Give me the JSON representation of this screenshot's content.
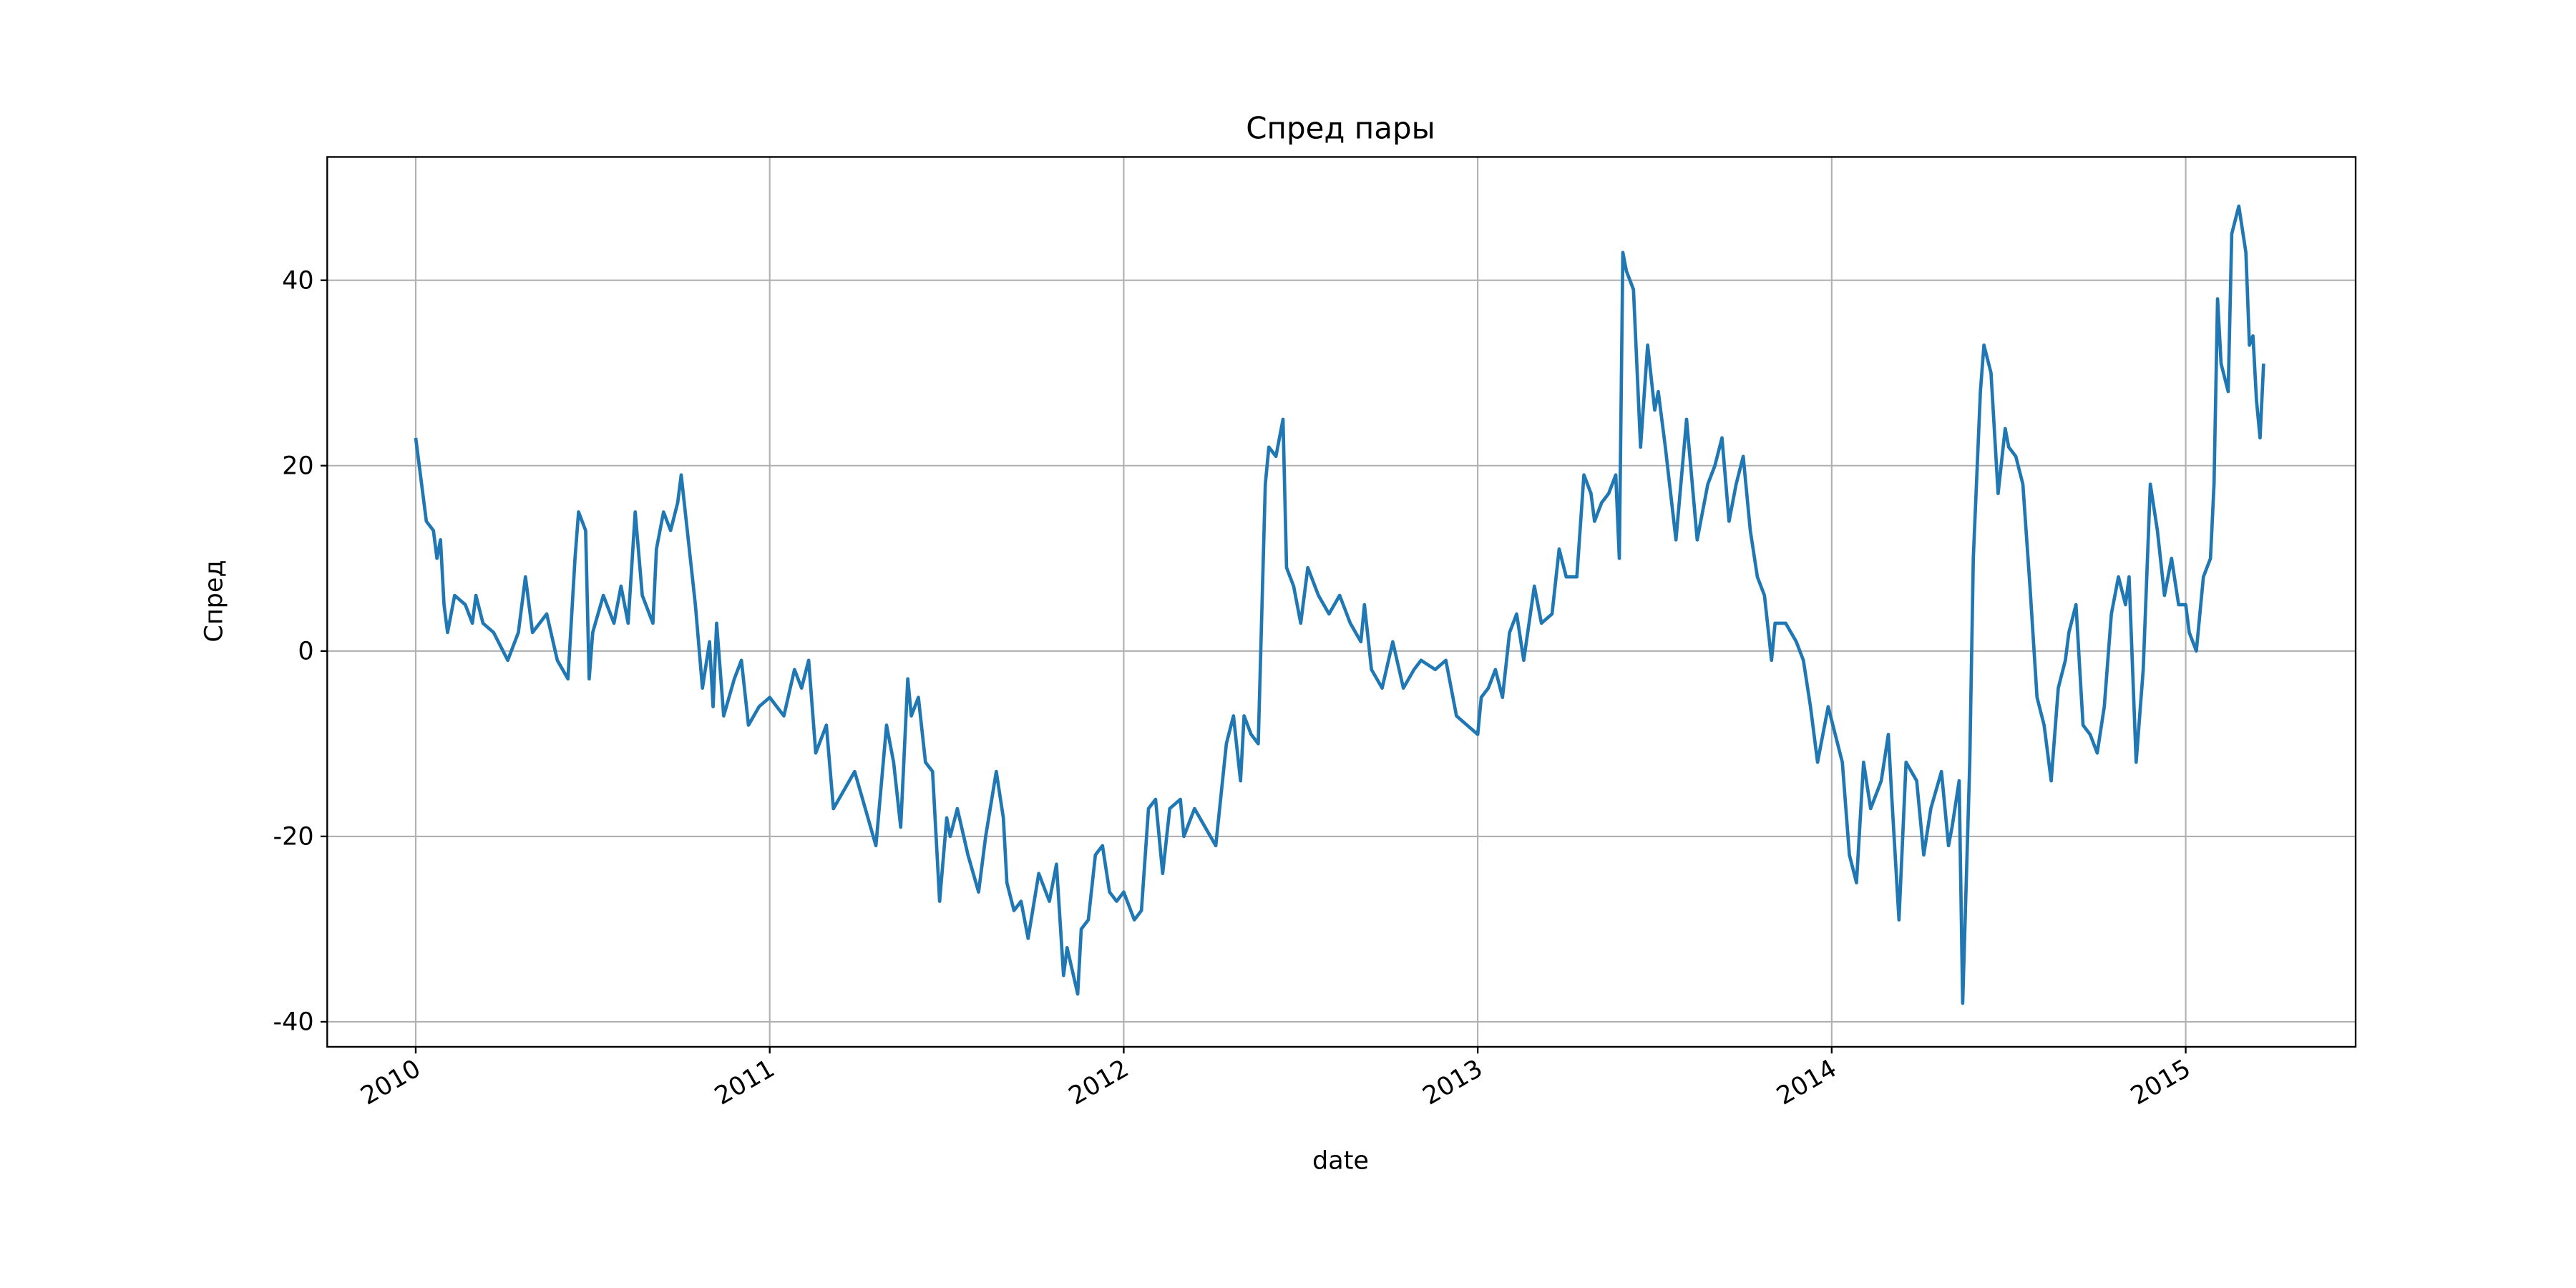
{
  "chart_data": {
    "type": "line",
    "title": "Спред пары",
    "x_label": "date",
    "y_label": "Спред",
    "color": "#1f77b4",
    "grid": true,
    "xlim": [
      2009.75,
      2015.48
    ],
    "xticks": [
      2010,
      2011,
      2012,
      2013,
      2014,
      2015
    ],
    "ylim": [
      -42.7,
      53.3
    ],
    "yticks": [
      -40,
      -20,
      0,
      20,
      40
    ],
    "x": [
      2010.0,
      2010.01,
      2010.03,
      2010.05,
      2010.06,
      2010.07,
      2010.08,
      2010.09,
      2010.11,
      2010.14,
      2010.16,
      2010.17,
      2010.19,
      2010.22,
      2010.26,
      2010.29,
      2010.31,
      2010.33,
      2010.35,
      2010.37,
      2010.4,
      2010.43,
      2010.45,
      2010.46,
      2010.48,
      2010.49,
      2010.5,
      2010.53,
      2010.56,
      2010.58,
      2010.6,
      2010.62,
      2010.64,
      2010.67,
      2010.68,
      2010.7,
      2010.72,
      2010.74,
      2010.75,
      2010.77,
      2010.79,
      2010.81,
      2010.83,
      2010.84,
      2010.85,
      2010.87,
      2010.9,
      2010.92,
      2010.94,
      2010.97,
      2011.0,
      2011.04,
      2011.07,
      2011.09,
      2011.11,
      2011.13,
      2011.16,
      2011.18,
      2011.21,
      2011.24,
      2011.27,
      2011.3,
      2011.33,
      2011.35,
      2011.37,
      2011.39,
      2011.4,
      2011.42,
      2011.44,
      2011.46,
      2011.48,
      2011.5,
      2011.51,
      2011.53,
      2011.56,
      2011.59,
      2011.61,
      2011.64,
      2011.66,
      2011.67,
      2011.69,
      2011.71,
      2011.73,
      2011.76,
      2011.79,
      2011.81,
      2011.83,
      2011.84,
      2011.87,
      2011.88,
      2011.9,
      2011.92,
      2011.94,
      2011.96,
      2011.98,
      2012.0,
      2012.03,
      2012.05,
      2012.07,
      2012.09,
      2012.11,
      2012.13,
      2012.16,
      2012.17,
      2012.2,
      2012.23,
      2012.26,
      2012.29,
      2012.31,
      2012.33,
      2012.34,
      2012.36,
      2012.38,
      2012.4,
      2012.41,
      2012.43,
      2012.45,
      2012.46,
      2012.48,
      2012.5,
      2012.52,
      2012.55,
      2012.58,
      2012.61,
      2012.64,
      2012.67,
      2012.68,
      2012.7,
      2012.73,
      2012.76,
      2012.79,
      2012.82,
      2012.84,
      2012.88,
      2012.91,
      2012.94,
      2012.97,
      2013.0,
      2013.01,
      2013.03,
      2013.05,
      2013.07,
      2013.09,
      2013.11,
      2013.13,
      2013.16,
      2013.18,
      2013.21,
      2013.23,
      2013.25,
      2013.28,
      2013.3,
      2013.32,
      2013.33,
      2013.35,
      2013.37,
      2013.39,
      2013.4,
      2013.41,
      2013.42,
      2013.44,
      2013.46,
      2013.48,
      2013.5,
      2013.51,
      2013.53,
      2013.56,
      2013.59,
      2013.62,
      2013.65,
      2013.67,
      2013.69,
      2013.71,
      2013.73,
      2013.75,
      2013.77,
      2013.79,
      2013.81,
      2013.83,
      2013.84,
      2013.87,
      2013.9,
      2013.92,
      2013.94,
      2013.96,
      2013.99,
      2014.01,
      2014.03,
      2014.05,
      2014.07,
      2014.09,
      2014.11,
      2014.14,
      2014.16,
      2014.17,
      2014.19,
      2014.21,
      2014.24,
      2014.26,
      2014.28,
      2014.31,
      2014.33,
      2014.34,
      2014.36,
      2014.37,
      2014.39,
      2014.4,
      2014.42,
      2014.43,
      2014.45,
      2014.47,
      2014.49,
      2014.5,
      2014.52,
      2014.54,
      2014.56,
      2014.58,
      2014.6,
      2014.62,
      2014.64,
      2014.66,
      2014.67,
      2014.69,
      2014.71,
      2014.73,
      2014.75,
      2014.77,
      2014.79,
      2014.81,
      2014.83,
      2014.84,
      2014.86,
      2014.88,
      2014.9,
      2014.92,
      2014.94,
      2014.96,
      2014.98,
      2015.0,
      2015.01,
      2015.03,
      2015.05,
      2015.07,
      2015.08,
      2015.09,
      2015.1,
      2015.12,
      2015.13,
      2015.15,
      2015.17,
      2015.18,
      2015.19,
      2015.2,
      2015.21,
      2015.22
    ],
    "values": [
      23,
      20,
      14,
      13,
      10,
      12,
      5,
      2,
      6,
      5,
      3,
      6,
      3,
      2,
      -1,
      2,
      8,
      2,
      3,
      4,
      -1,
      -3,
      10,
      15,
      13,
      -3,
      2,
      6,
      3,
      7,
      3,
      15,
      6,
      3,
      11,
      15,
      13,
      16,
      19,
      12,
      5,
      -4,
      1,
      -6,
      3,
      -7,
      -3,
      -1,
      -8,
      -6,
      -5,
      -7,
      -2,
      -4,
      -1,
      -11,
      -8,
      -17,
      -15,
      -13,
      -17,
      -21,
      -8,
      -12,
      -19,
      -3,
      -7,
      -5,
      -12,
      -13,
      -27,
      -18,
      -20,
      -17,
      -22,
      -26,
      -20,
      -13,
      -18,
      -25,
      -28,
      -27,
      -31,
      -24,
      -27,
      -23,
      -35,
      -32,
      -37,
      -30,
      -29,
      -22,
      -21,
      -26,
      -27,
      -26,
      -29,
      -28,
      -17,
      -16,
      -24,
      -17,
      -16,
      -20,
      -17,
      -19,
      -21,
      -10,
      -7,
      -14,
      -7,
      -9,
      -10,
      18,
      22,
      21,
      25,
      9,
      7,
      3,
      9,
      6,
      4,
      6,
      3,
      1,
      5,
      -2,
      -4,
      1,
      -4,
      -2,
      -1,
      -2,
      -1,
      -7,
      -8,
      -9,
      -5,
      -4,
      -2,
      -5,
      2,
      4,
      -1,
      7,
      3,
      4,
      11,
      8,
      8,
      19,
      17,
      14,
      16,
      17,
      19,
      10,
      43,
      41,
      39,
      22,
      33,
      26,
      28,
      22,
      12,
      25,
      12,
      18,
      20,
      23,
      14,
      18,
      21,
      13,
      8,
      6,
      -1,
      3,
      3,
      1,
      -1,
      -6,
      -12,
      -6,
      -9,
      -12,
      -22,
      -25,
      -12,
      -17,
      -14,
      -9,
      -16,
      -29,
      -12,
      -14,
      -22,
      -17,
      -13,
      -21,
      -19,
      -14,
      -38,
      -12,
      10,
      28,
      33,
      30,
      17,
      24,
      22,
      21,
      18,
      7,
      -5,
      -8,
      -14,
      -4,
      -1,
      2,
      5,
      -8,
      -9,
      -11,
      -6,
      4,
      8,
      5,
      8,
      -12,
      -2,
      18,
      13,
      6,
      10,
      5,
      5,
      2,
      0,
      8,
      10,
      18,
      38,
      31,
      28,
      45,
      48,
      43,
      33,
      34,
      27,
      23,
      31
    ]
  }
}
